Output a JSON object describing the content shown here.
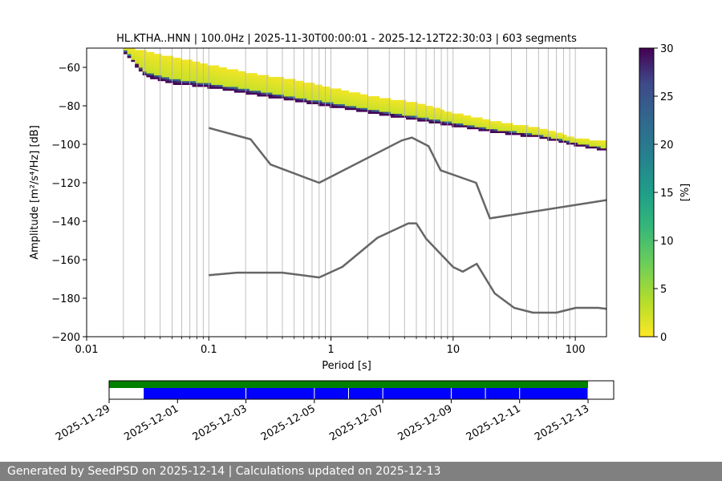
{
  "chart_data": [
    {
      "type": "heatmap",
      "title": "HL.KTHA..HNN | 100.0Hz | 2025-11-30T00:00:01 - 2025-12-12T22:30:03 | 603 segments",
      "xlabel": "Period [s]",
      "ylabel": "Amplitude [m²/s⁴/Hz] [dB]",
      "x_scale": "log",
      "xlim": [
        0.01,
        180
      ],
      "ylim": [
        -200,
        -50
      ],
      "x_ticks": [
        0.01,
        0.1,
        1,
        10,
        100
      ],
      "x_tick_labels": [
        "0.01",
        "0.1",
        "1",
        "10",
        "100"
      ],
      "y_ticks": [
        -200,
        -180,
        -160,
        -140,
        -120,
        -100,
        -80,
        -60
      ],
      "y_tick_labels": [
        "−200",
        "−180",
        "−160",
        "−140",
        "−120",
        "−100",
        "−80",
        "−60"
      ],
      "grid": true,
      "colorbar": {
        "label": "[%]",
        "range": [
          0,
          30
        ],
        "ticks": [
          0,
          5,
          10,
          15,
          20,
          25,
          30
        ],
        "tick_labels": [
          "0",
          "5",
          "10",
          "15",
          "20",
          "25",
          "30"
        ],
        "colormap": "viridis_r"
      },
      "psd_band": {
        "period": [
          0.02,
          0.03,
          0.05,
          0.1,
          0.2,
          0.5,
          1,
          2,
          5,
          10,
          20,
          50,
          100,
          180
        ],
        "lower": [
          -51,
          -64,
          -68,
          -70,
          -73,
          -77,
          -80,
          -83,
          -87,
          -90,
          -93,
          -96,
          -100,
          -103
        ],
        "upper": [
          -50,
          -52,
          -55,
          -59,
          -63,
          -67,
          -71,
          -75,
          -79,
          -84,
          -88,
          -92,
          -97,
          -99
        ],
        "peak_offset": 0.82
      },
      "series": [
        {
          "name": "NHNM",
          "color": "#666666",
          "x": [
            0.1,
            0.22,
            0.32,
            0.8,
            3.8,
            4.6,
            6.3,
            7.9,
            15.4,
            20,
            180
          ],
          "y": [
            -91.5,
            -97.4,
            -110.5,
            -120,
            -98,
            -96.5,
            -101,
            -113.5,
            -120,
            -138.5,
            -129
          ]
        },
        {
          "name": "NLNM",
          "color": "#666666",
          "x": [
            0.1,
            0.17,
            0.4,
            0.8,
            1.24,
            2.4,
            4.3,
            5,
            6,
            10,
            12,
            15.6,
            21.9,
            31.6,
            45,
            70,
            101,
            154,
            180
          ],
          "y": [
            -168,
            -166.7,
            -166.7,
            -169.2,
            -163.7,
            -148.6,
            -141.1,
            -141.1,
            -149,
            -163.8,
            -166.2,
            -162.1,
            -177.5,
            -185,
            -187.5,
            -187.5,
            -185,
            -185,
            -185.5
          ]
        }
      ]
    },
    {
      "type": "timeline",
      "xlim": [
        "2025-11-29",
        "2025-12-13 18:00"
      ],
      "x_tick_labels": [
        "2025-11-29",
        "2025-12-01",
        "2025-12-03",
        "2025-12-05",
        "2025-12-07",
        "2025-12-09",
        "2025-12-11",
        "2025-12-13"
      ],
      "x_ticks": [
        "2025-11-29",
        "2025-12-01",
        "2025-12-03",
        "2025-12-05",
        "2025-12-07",
        "2025-12-09",
        "2025-12-11",
        "2025-12-13"
      ],
      "data_available": {
        "color": "#008000",
        "start": "2025-11-29",
        "end": "2025-12-13"
      },
      "psd_segments": {
        "color": "#0000ff",
        "intervals": [
          [
            "2025-11-30",
            "2025-12-03"
          ],
          [
            "2025-12-03",
            "2025-12-05"
          ],
          [
            "2025-12-05",
            "2025-12-06"
          ],
          [
            "2025-12-06",
            "2025-12-07"
          ],
          [
            "2025-12-07",
            "2025-12-09"
          ],
          [
            "2025-12-09",
            "2025-12-10"
          ],
          [
            "2025-12-10",
            "2025-12-11"
          ],
          [
            "2025-12-11",
            "2025-12-13"
          ]
        ]
      }
    }
  ],
  "footer": {
    "text": "Generated by SeedPSD on 2025-12-14 | Calculations updated on 2025-12-13"
  }
}
